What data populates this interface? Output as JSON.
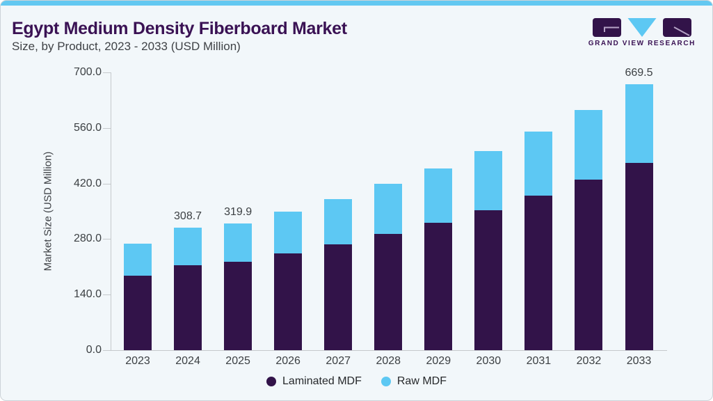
{
  "header": {
    "title": "Egypt Medium Density Fiberboard Market",
    "subtitle": "Size, by Product, 2023 - 2033 (USD Million)"
  },
  "logo": {
    "text": "GRAND VIEW RESEARCH"
  },
  "brand": {
    "dark_purple": "#321349",
    "light_blue": "#5dc8f3",
    "accent_strip": "#63c8f1",
    "logo_line": "#b5a3c6"
  },
  "chart_data": {
    "type": "bar",
    "stacked": true,
    "title": "Egypt Medium Density Fiberboard Market Size, by Product, 2023 - 2033 (USD Million)",
    "categories": [
      "2023",
      "2024",
      "2025",
      "2026",
      "2027",
      "2028",
      "2029",
      "2030",
      "2031",
      "2032",
      "2033"
    ],
    "series": [
      {
        "name": "Laminated MDF",
        "color": "#321349",
        "values": [
          187.0,
          214.0,
          223.4,
          244.5,
          266.0,
          293.5,
          321.5,
          352.5,
          389.5,
          429.5,
          472.5
        ]
      },
      {
        "name": "Raw MDF",
        "color": "#5dc8f3",
        "values": [
          82.0,
          94.7,
          96.5,
          105.5,
          115.0,
          125.0,
          137.0,
          149.5,
          161.0,
          175.5,
          197.0
        ]
      }
    ],
    "totals": [
      269.0,
      308.7,
      319.9,
      350.0,
      381.0,
      418.5,
      458.5,
      502.0,
      550.5,
      605.0,
      669.5
    ],
    "total_labels": {
      "2024": "308.7",
      "2025": "319.9",
      "2033": "669.5"
    },
    "ylabel": "Market Size (USD Million)",
    "yticks": [
      0,
      140,
      280,
      420,
      560,
      700
    ],
    "ytick_labels": [
      "0.0",
      "140.0",
      "280.0",
      "420.0",
      "560.0",
      "700.0"
    ],
    "ylim": [
      0,
      700
    ],
    "grid": false,
    "legend_position": "bottom"
  }
}
